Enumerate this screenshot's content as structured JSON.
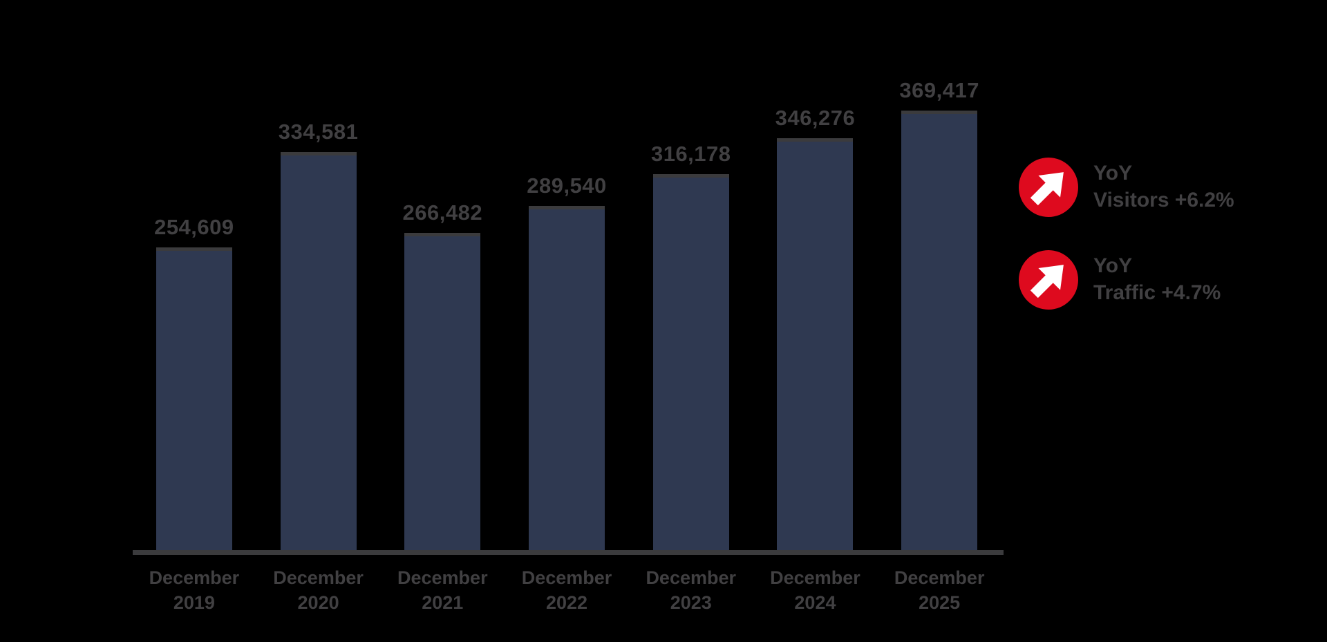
{
  "background": "#000000",
  "colors": {
    "bar_fill": "#2F3951",
    "bar_top_cap": "#3B3B3D",
    "axis_line": "#3B3B3D",
    "text": "#414042",
    "legend_badge_red": "#DE0A1E",
    "legend_arrow_white": "#FFFFFF"
  },
  "chart_data": {
    "type": "bar",
    "title": "",
    "xlabel": "",
    "ylabel": "",
    "grid": false,
    "axis_baseline": true,
    "ylim": [
      0,
      400000
    ],
    "categories": [
      "December 2019",
      "December 2020",
      "December 2021",
      "December 2022",
      "December 2023",
      "December 2024",
      "December 2025"
    ],
    "category_lines": [
      {
        "month": "December",
        "year": "2019"
      },
      {
        "month": "December",
        "year": "2020"
      },
      {
        "month": "December",
        "year": "2021"
      },
      {
        "month": "December",
        "year": "2022"
      },
      {
        "month": "December",
        "year": "2023"
      },
      {
        "month": "December",
        "year": "2024"
      },
      {
        "month": "December",
        "year": "2025"
      }
    ],
    "values": [
      254609,
      334581,
      266482,
      289540,
      316178,
      346276,
      369417
    ],
    "value_labels": [
      "254,609",
      "334,581",
      "266,482",
      "289,540",
      "316,178",
      "346,276",
      "369,417"
    ],
    "bar_color": "#2F3951",
    "legend_position": "right"
  },
  "legend": {
    "items": [
      {
        "icon": "arrow-up-right-circle-icon",
        "icon_color": "#DE0A1E",
        "title": "YoY",
        "text": "Visitors +6.2%"
      },
      {
        "icon": "arrow-up-right-circle-icon",
        "icon_color": "#DE0A1E",
        "title": "YoY",
        "text": "Traffic +4.7%"
      }
    ]
  }
}
